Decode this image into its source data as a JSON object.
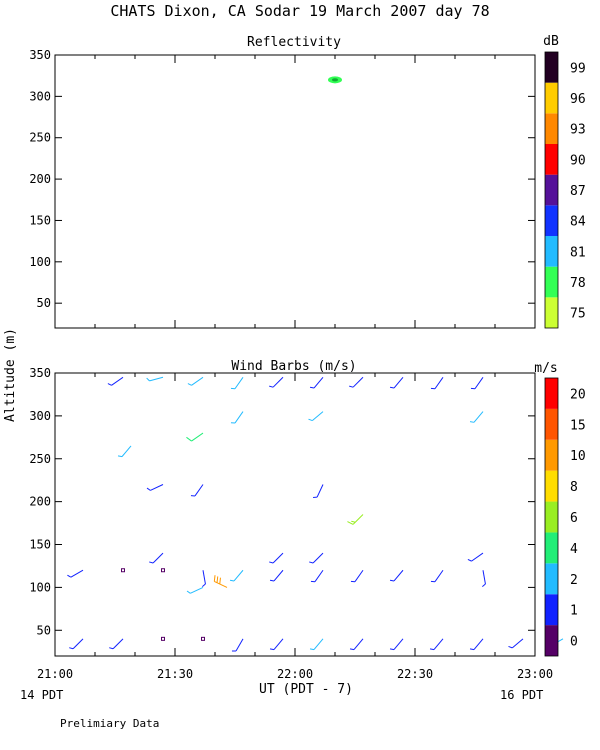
{
  "title": "CHATS Dixon, CA  Sodar  19 March 2007  day  78",
  "footer_note": "Prelimiary Data",
  "y_axis_label": "Altitude  (m)",
  "x_axis_label": "UT  (PDT - 7)",
  "local_time_left": "14 PDT",
  "local_time_right": "16 PDT",
  "chart_data": [
    {
      "type": "heatmap",
      "title": "Reflectivity",
      "x_ticks": [
        "21:00",
        "21:30",
        "22:00",
        "22:30",
        "23:00"
      ],
      "x_range_minutes_ut": [
        1260,
        1380
      ],
      "ylim": [
        20,
        350
      ],
      "y_ticks": [
        50,
        100,
        150,
        200,
        250,
        300,
        350
      ],
      "colorbar": {
        "unit": "dB",
        "labels": [
          75,
          78,
          81,
          84,
          87,
          90,
          93,
          96,
          99
        ],
        "colors": [
          "#ccff33",
          "#33ff55",
          "#22bbff",
          "#1133ff",
          "#551199",
          "#ff0000",
          "#ff8800",
          "#ffcc00",
          "#220022"
        ]
      },
      "echoes": [
        {
          "time": "22:10",
          "altitude": 320,
          "dB": 79
        }
      ]
    },
    {
      "type": "wind_barbs",
      "title": "Wind Barbs (m/s)",
      "x_ticks": [
        "21:00",
        "21:30",
        "22:00",
        "22:30",
        "23:00"
      ],
      "x_range_minutes_ut": [
        1260,
        1380
      ],
      "ylim": [
        20,
        350
      ],
      "y_ticks": [
        50,
        100,
        150,
        200,
        250,
        300,
        350
      ],
      "colorbar": {
        "unit": "m/s",
        "labels": [
          "0",
          "1",
          "2",
          "4",
          "6",
          "8",
          "10",
          "15",
          "20"
        ],
        "colors": [
          "#550066",
          "#1122ff",
          "#22bbff",
          "#22ee77",
          "#99ee22",
          "#ffdd00",
          "#ff9900",
          "#ff5500",
          "#ff0000"
        ]
      },
      "barbs": [
        {
          "time": "21:07",
          "altitude": 40,
          "speed": 1.5,
          "dir": 225
        },
        {
          "time": "21:17",
          "altitude": 40,
          "speed": 1.5,
          "dir": 225
        },
        {
          "time": "21:27",
          "altitude": 40,
          "speed": 0.3,
          "dir": 0,
          "calm": true
        },
        {
          "time": "21:37",
          "altitude": 40,
          "speed": 0.3,
          "dir": 0,
          "calm": true
        },
        {
          "time": "21:47",
          "altitude": 40,
          "speed": 1.5,
          "dir": 210
        },
        {
          "time": "21:57",
          "altitude": 40,
          "speed": 1.5,
          "dir": 220
        },
        {
          "time": "22:07",
          "altitude": 40,
          "speed": 2.5,
          "dir": 220
        },
        {
          "time": "22:17",
          "altitude": 40,
          "speed": 1.5,
          "dir": 220
        },
        {
          "time": "22:27",
          "altitude": 40,
          "speed": 1.5,
          "dir": 220
        },
        {
          "time": "22:37",
          "altitude": 40,
          "speed": 1.5,
          "dir": 220
        },
        {
          "time": "22:47",
          "altitude": 40,
          "speed": 1.5,
          "dir": 220
        },
        {
          "time": "22:57",
          "altitude": 40,
          "speed": 1.5,
          "dir": 230
        },
        {
          "time": "23:07",
          "altitude": 40,
          "speed": 2.5,
          "dir": 240
        },
        {
          "time": "21:47",
          "altitude": 120,
          "speed": 2.5,
          "dir": 220
        },
        {
          "time": "21:07",
          "altitude": 120,
          "speed": 1.5,
          "dir": 240
        },
        {
          "time": "21:17",
          "altitude": 120,
          "speed": 0.3,
          "dir": 0,
          "calm": true
        },
        {
          "time": "21:27",
          "altitude": 120,
          "speed": 0.3,
          "dir": 0,
          "calm": true
        },
        {
          "time": "21:37",
          "altitude": 120,
          "speed": 1.5,
          "dir": 170
        },
        {
          "time": "21:57",
          "altitude": 120,
          "speed": 1.5,
          "dir": 220
        },
        {
          "time": "22:07",
          "altitude": 120,
          "speed": 1.5,
          "dir": 215
        },
        {
          "time": "22:17",
          "altitude": 120,
          "speed": 1.5,
          "dir": 215
        },
        {
          "time": "22:27",
          "altitude": 120,
          "speed": 1.5,
          "dir": 220
        },
        {
          "time": "22:37",
          "altitude": 120,
          "speed": 1.5,
          "dir": 215
        },
        {
          "time": "22:47",
          "altitude": 120,
          "speed": 1.5,
          "dir": 170
        },
        {
          "time": "21:37",
          "altitude": 100,
          "speed": 3.5,
          "dir": 245
        },
        {
          "time": "21:43",
          "altitude": 100,
          "speed": 14,
          "dir": 295
        },
        {
          "time": "21:27",
          "altitude": 140,
          "speed": 1.5,
          "dir": 225
        },
        {
          "time": "21:57",
          "altitude": 140,
          "speed": 1.5,
          "dir": 225
        },
        {
          "time": "22:07",
          "altitude": 140,
          "speed": 1.5,
          "dir": 225
        },
        {
          "time": "22:47",
          "altitude": 140,
          "speed": 1.5,
          "dir": 235
        },
        {
          "time": "22:17",
          "altitude": 185,
          "speed": 7,
          "dir": 225
        },
        {
          "time": "21:27",
          "altitude": 220,
          "speed": 1.5,
          "dir": 245
        },
        {
          "time": "21:37",
          "altitude": 220,
          "speed": 1.5,
          "dir": 215
        },
        {
          "time": "22:07",
          "altitude": 220,
          "speed": 1.5,
          "dir": 205
        },
        {
          "time": "21:19",
          "altitude": 265,
          "speed": 2.5,
          "dir": 220
        },
        {
          "time": "21:37",
          "altitude": 280,
          "speed": 4,
          "dir": 235
        },
        {
          "time": "21:47",
          "altitude": 305,
          "speed": 2.5,
          "dir": 215
        },
        {
          "time": "22:07",
          "altitude": 305,
          "speed": 2.5,
          "dir": 230
        },
        {
          "time": "22:47",
          "altitude": 305,
          "speed": 2.5,
          "dir": 220
        },
        {
          "time": "21:17",
          "altitude": 345,
          "speed": 1.5,
          "dir": 235
        },
        {
          "time": "21:27",
          "altitude": 345,
          "speed": 2.5,
          "dir": 255
        },
        {
          "time": "21:37",
          "altitude": 345,
          "speed": 2.5,
          "dir": 235
        },
        {
          "time": "21:47",
          "altitude": 345,
          "speed": 2.5,
          "dir": 215
        },
        {
          "time": "21:57",
          "altitude": 345,
          "speed": 1.5,
          "dir": 225
        },
        {
          "time": "22:07",
          "altitude": 345,
          "speed": 1.5,
          "dir": 220
        },
        {
          "time": "22:17",
          "altitude": 345,
          "speed": 1.5,
          "dir": 225
        },
        {
          "time": "22:27",
          "altitude": 345,
          "speed": 1.5,
          "dir": 220
        },
        {
          "time": "22:37",
          "altitude": 345,
          "speed": 1.5,
          "dir": 215
        },
        {
          "time": "22:47",
          "altitude": 345,
          "speed": 1.5,
          "dir": 215
        }
      ]
    }
  ]
}
